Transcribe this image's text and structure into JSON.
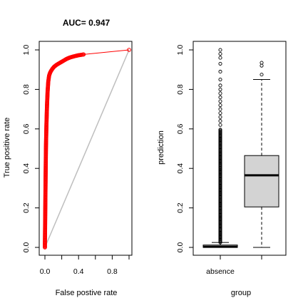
{
  "chart_data": [
    {
      "type": "line",
      "title": "AUC= 0.947",
      "xlabel": "False postive rate",
      "ylabel": "True positive rate",
      "xlim": [
        0,
        1
      ],
      "ylim": [
        0,
        1
      ],
      "xticks": [
        "0.0",
        "0.4",
        "0.8"
      ],
      "yticks": [
        "0.0",
        "0.2",
        "0.4",
        "0.6",
        "0.8",
        "1.0"
      ],
      "grid": false,
      "colors": {
        "roc": "#ff0000",
        "diagonal": "#bebebe",
        "frame": "#000000"
      },
      "series": [
        {
          "x": [
            0.0,
            0.0,
            0.002,
            0.005,
            0.008,
            0.012,
            0.018,
            0.025,
            0.032,
            0.04,
            0.05,
            0.062,
            0.075,
            0.09,
            0.11,
            0.14,
            0.18,
            0.22,
            0.26,
            0.3,
            0.35,
            0.4,
            0.46,
            1.0
          ],
          "y": [
            0.0,
            0.02,
            0.1,
            0.22,
            0.35,
            0.5,
            0.62,
            0.72,
            0.79,
            0.84,
            0.87,
            0.885,
            0.895,
            0.905,
            0.915,
            0.925,
            0.935,
            0.945,
            0.955,
            0.962,
            0.968,
            0.973,
            0.977,
            1.0
          ]
        },
        {
          "x": [
            0,
            1
          ],
          "y": [
            0,
            1
          ]
        }
      ]
    },
    {
      "type": "box",
      "xlabel": "group",
      "ylabel": "prediction",
      "categories": [
        "absence",
        ""
      ],
      "ylim": [
        0,
        1
      ],
      "yticks": [
        "0.0",
        "0.2",
        "0.4",
        "0.6",
        "0.8",
        "1.0"
      ],
      "grid": false,
      "colors": {
        "box_fill": "#d3d3d3",
        "stroke": "#000000"
      },
      "boxes": [
        {
          "whisker_low": 0.0,
          "q1": 0.0,
          "median": 0.003,
          "q3": 0.012,
          "whisker_high": 0.025,
          "outliers_dense_from": 0.025,
          "outliers_dense_to": 0.6,
          "outliers": [
            0.62,
            0.64,
            0.66,
            0.68,
            0.7,
            0.72,
            0.74,
            0.76,
            0.78,
            0.8,
            0.82,
            0.85,
            0.89,
            0.93,
            0.96,
            0.98,
            1.0
          ]
        },
        {
          "whisker_low": 0.0,
          "q1": 0.205,
          "median": 0.365,
          "q3": 0.465,
          "whisker_high": 0.85,
          "outliers": [
            0.875,
            0.92,
            0.935
          ]
        }
      ]
    }
  ]
}
